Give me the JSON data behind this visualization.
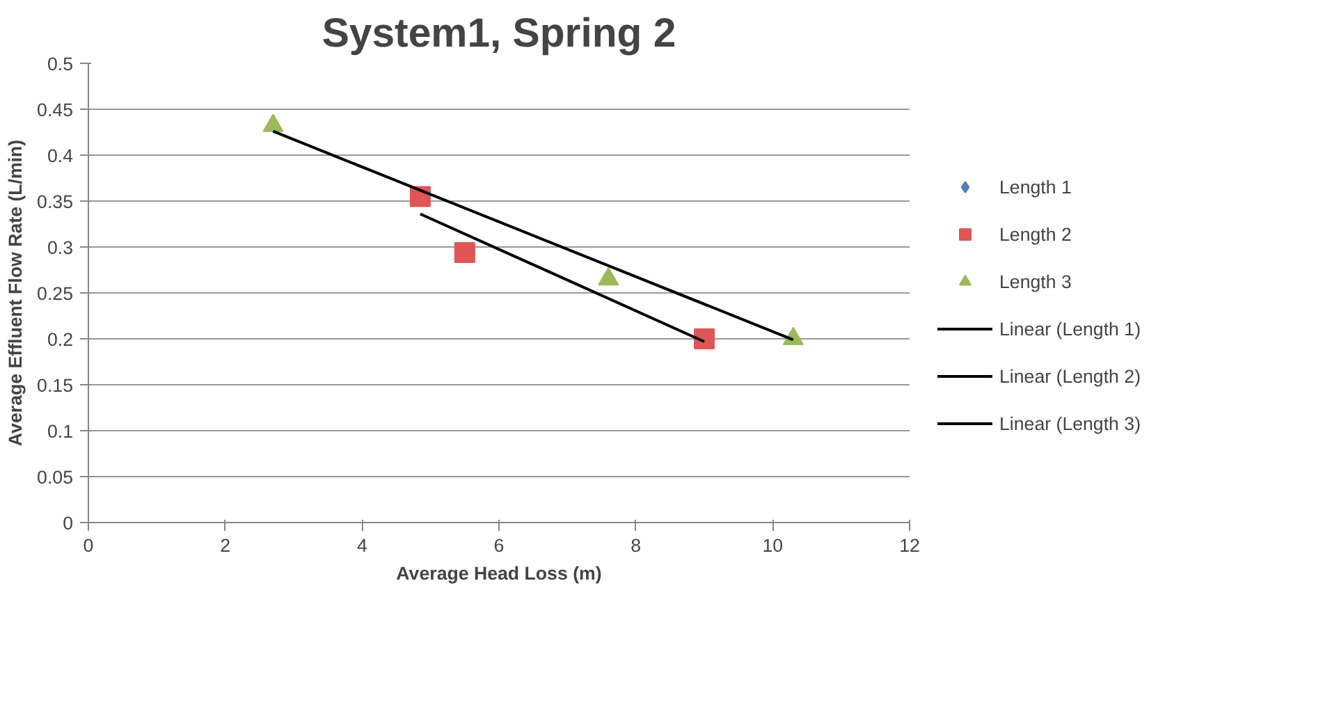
{
  "chart_data": {
    "type": "scatter",
    "title": "System1, Spring 2",
    "xlabel": "Average Head Loss (m)",
    "ylabel": "Average Effluent Flow Rate (L/min)",
    "xlim": [
      0,
      12
    ],
    "xticks": [
      0,
      2,
      4,
      6,
      8,
      10,
      12
    ],
    "ylim": [
      0,
      0.5
    ],
    "yticks": [
      0,
      0.05,
      0.1,
      0.15,
      0.2,
      0.25,
      0.3,
      0.35,
      0.4,
      0.45,
      0.5
    ],
    "grid": "y",
    "legend": "right",
    "series": [
      {
        "name": "Length 1",
        "marker": "diamond",
        "color": "#4f81bd"
      },
      {
        "name": "Length 2",
        "marker": "square",
        "color": "#e05555",
        "x": [
          4.85,
          5.5,
          9.0
        ],
        "values": [
          0.355,
          0.294,
          0.2
        ]
      },
      {
        "name": "Length 3",
        "marker": "triangle",
        "color": "#9bbb59",
        "x": [
          2.7,
          7.6,
          10.3
        ],
        "values": [
          0.432,
          0.265,
          0.2
        ]
      },
      {
        "name": "Linear (Length 1)",
        "type": "line",
        "marker": "none",
        "line_style": "solid",
        "color": "#000000"
      },
      {
        "name": "Linear (Length 2)",
        "type": "line",
        "marker": "none",
        "line_style": "solid",
        "color": "#000000",
        "x": [
          4.85,
          9.0
        ],
        "values": [
          0.336,
          0.197
        ]
      },
      {
        "name": "Linear (Length 3)",
        "type": "line",
        "marker": "none",
        "line_style": "solid",
        "color": "#000000",
        "x": [
          2.7,
          10.3
        ],
        "values": [
          0.426,
          0.199
        ]
      }
    ]
  }
}
